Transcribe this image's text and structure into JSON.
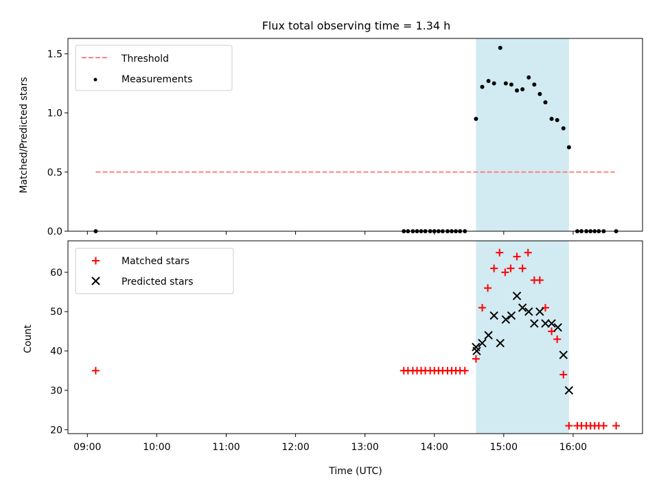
{
  "chart_data": {
    "title": "Flux total observing time = 1.34 h",
    "highlight_span": {
      "start_h": 14.6,
      "end_h": 15.94,
      "color": "#add8e6"
    },
    "top": {
      "type": "scatter",
      "ylabel": "Matched/Predicted stars",
      "ylim": [
        0,
        1.63
      ],
      "yticks": [
        {
          "v": 0.0,
          "label": "0.0"
        },
        {
          "v": 0.5,
          "label": "0.5"
        },
        {
          "v": 1.0,
          "label": "1.0"
        },
        {
          "v": 1.5,
          "label": "1.5"
        }
      ],
      "threshold": {
        "name": "Threshold",
        "value": 0.5,
        "x_range_h": [
          9.12,
          16.6
        ],
        "color": "#ff8080"
      },
      "measurements": {
        "name": "Measurements",
        "color": "#000000",
        "x_h": [
          9.12,
          13.56,
          13.62,
          13.69,
          13.75,
          13.81,
          13.87,
          13.94,
          14.0,
          14.06,
          14.12,
          14.19,
          14.25,
          14.31,
          14.37,
          14.44,
          14.6,
          14.69,
          14.78,
          14.86,
          14.95,
          15.03,
          15.11,
          15.19,
          15.27,
          15.36,
          15.44,
          15.52,
          15.6,
          15.69,
          15.77,
          15.86,
          15.94,
          16.06,
          16.12,
          16.19,
          16.25,
          16.31,
          16.37,
          16.44,
          16.62
        ],
        "y": [
          0,
          0,
          0,
          0,
          0,
          0,
          0,
          0,
          0,
          0,
          0,
          0,
          0,
          0,
          0,
          0,
          0.95,
          1.22,
          1.27,
          1.25,
          1.55,
          1.25,
          1.24,
          1.19,
          1.2,
          1.3,
          1.24,
          1.16,
          1.09,
          0.95,
          0.94,
          0.87,
          0.71,
          0,
          0,
          0,
          0,
          0,
          0,
          0,
          0
        ]
      }
    },
    "bottom": {
      "type": "scatter",
      "ylabel": "Count",
      "xlabel": "Time (UTC)",
      "ylim": [
        19,
        68
      ],
      "yticks": [
        {
          "v": 20,
          "label": "20"
        },
        {
          "v": 30,
          "label": "30"
        },
        {
          "v": 40,
          "label": "40"
        },
        {
          "v": 50,
          "label": "50"
        },
        {
          "v": 60,
          "label": "60"
        }
      ],
      "xlim_h": [
        8.72,
        17.0
      ],
      "xticks": [
        {
          "v": 9,
          "label": "09:00"
        },
        {
          "v": 10,
          "label": "10:00"
        },
        {
          "v": 11,
          "label": "11:00"
        },
        {
          "v": 12,
          "label": "12:00"
        },
        {
          "v": 13,
          "label": "13:00"
        },
        {
          "v": 14,
          "label": "14:00"
        },
        {
          "v": 15,
          "label": "15:00"
        },
        {
          "v": 16,
          "label": "16:00"
        }
      ],
      "matched": {
        "name": "Matched stars",
        "color": "#ff0000",
        "x_h": [
          9.12,
          13.56,
          13.62,
          13.69,
          13.75,
          13.81,
          13.87,
          13.94,
          14.0,
          14.06,
          14.12,
          14.19,
          14.25,
          14.31,
          14.37,
          14.44,
          14.6,
          14.69,
          14.77,
          14.86,
          14.94,
          15.02,
          15.1,
          15.19,
          15.27,
          15.35,
          15.44,
          15.52,
          15.6,
          15.69,
          15.77,
          15.86,
          15.94,
          16.06,
          16.12,
          16.19,
          16.25,
          16.31,
          16.37,
          16.44,
          16.62
        ],
        "y": [
          35,
          35,
          35,
          35,
          35,
          35,
          35,
          35,
          35,
          35,
          35,
          35,
          35,
          35,
          35,
          35,
          38,
          51,
          56,
          61,
          65,
          60,
          61,
          64,
          61,
          65,
          58,
          58,
          51,
          45,
          43,
          34,
          21,
          21,
          21,
          21,
          21,
          21,
          21,
          21,
          21
        ]
      },
      "predicted": {
        "name": "Predicted stars",
        "color": "#000000",
        "x_h": [
          14.6,
          14.61,
          14.69,
          14.78,
          14.86,
          14.95,
          15.03,
          15.11,
          15.19,
          15.27,
          15.36,
          15.44,
          15.52,
          15.6,
          15.69,
          15.78,
          15.86,
          15.94
        ],
        "y": [
          41,
          40,
          42,
          44,
          49,
          42,
          48,
          49,
          54,
          51,
          50,
          47,
          50,
          47,
          47,
          46,
          39,
          30
        ]
      }
    }
  }
}
